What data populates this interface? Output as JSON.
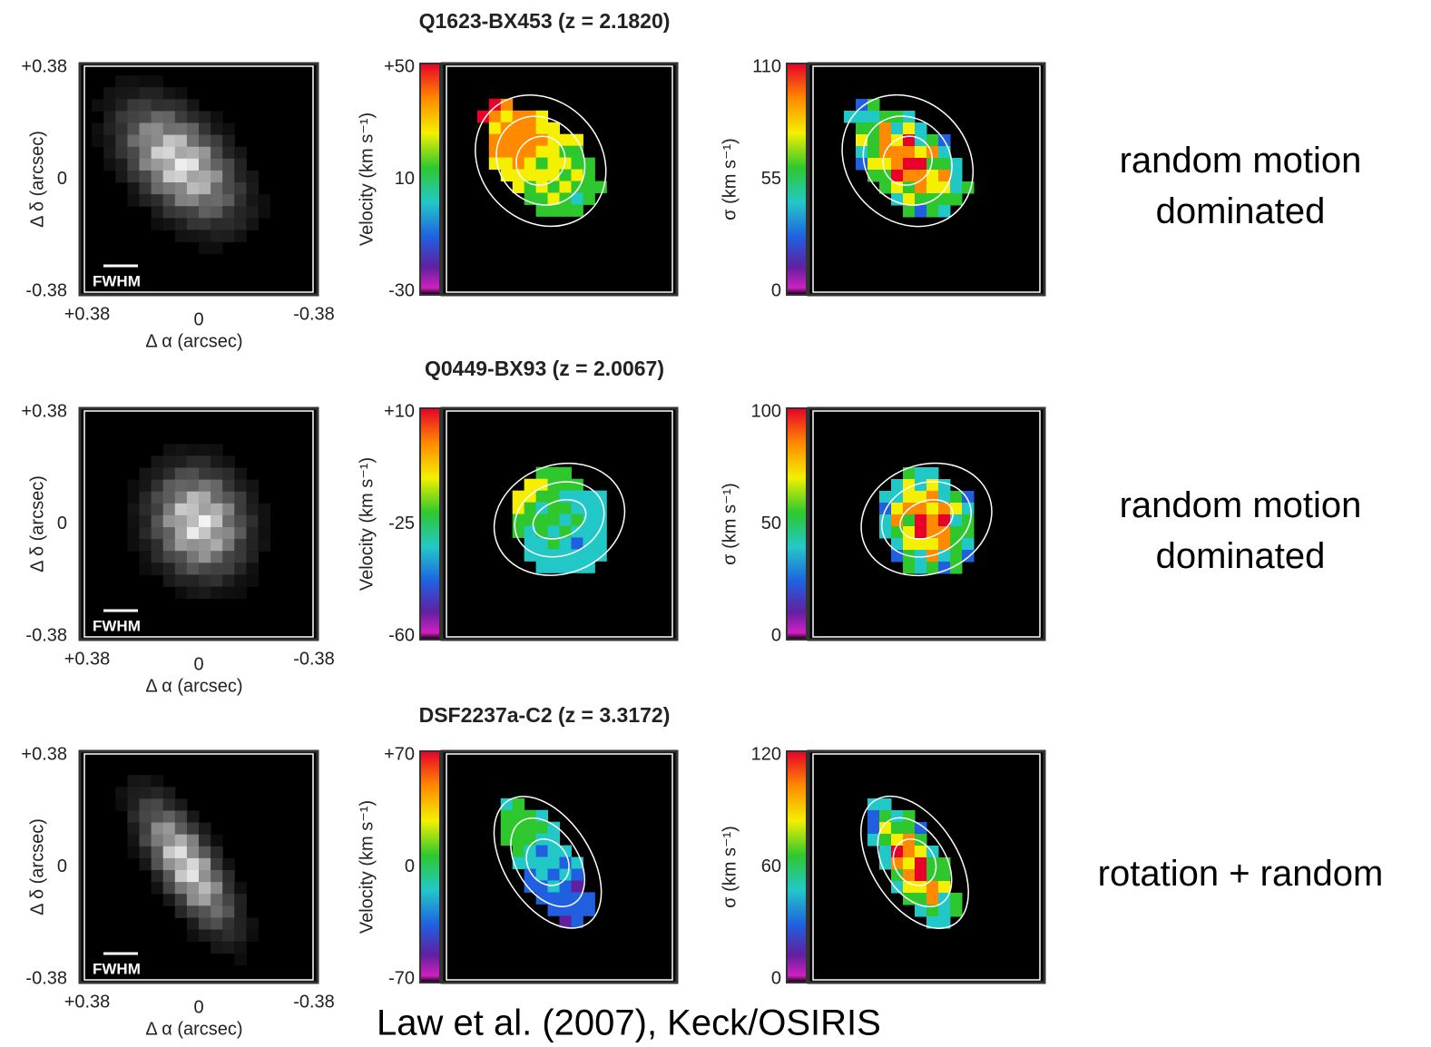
{
  "rows": [
    {
      "title": "Q1623-BX453 (z = 2.1820)",
      "flux": {
        "yticks": [
          "+0.38",
          "0",
          "-0.38"
        ],
        "xticks": [
          "+0.38",
          "0",
          "-0.38"
        ],
        "ylabel": "Δ δ (arcsec)",
        "xlabel": "Δ α (arcsec)",
        "scalebar": "FWHM"
      },
      "velocity": {
        "label": "Velocity (km s⁻¹)",
        "ticks": [
          "+50",
          "10",
          "-30"
        ]
      },
      "dispersion": {
        "label": "σ (km s⁻¹)",
        "ticks": [
          "110",
          "55",
          "0"
        ]
      },
      "note": [
        "random motion",
        "dominated"
      ]
    },
    {
      "title": "Q0449-BX93 (z = 2.0067)",
      "flux": {
        "yticks": [
          "+0.38",
          "0",
          "-0.38"
        ],
        "xticks": [
          "+0.38",
          "0",
          "-0.38"
        ],
        "ylabel": "Δ δ (arcsec)",
        "xlabel": "Δ α (arcsec)",
        "scalebar": "FWHM"
      },
      "velocity": {
        "label": "Velocity (km s⁻¹)",
        "ticks": [
          "+10",
          "-25",
          "-60"
        ]
      },
      "dispersion": {
        "label": "σ (km s⁻¹)",
        "ticks": [
          "100",
          "50",
          "0"
        ]
      },
      "note": [
        "random motion",
        "dominated"
      ]
    },
    {
      "title": "DSF2237a-C2 (z = 3.3172)",
      "flux": {
        "yticks": [
          "+0.38",
          "0",
          "-0.38"
        ],
        "xticks": [
          "+0.38",
          "0",
          "-0.38"
        ],
        "ylabel": "Δ δ (arcsec)",
        "xlabel": "Δ α (arcsec)",
        "scalebar": "FWHM"
      },
      "velocity": {
        "label": "Velocity (km s⁻¹)",
        "ticks": [
          "+70",
          "0",
          "-70"
        ]
      },
      "dispersion": {
        "label": "σ (km s⁻¹)",
        "ticks": [
          "120",
          "60",
          "0"
        ]
      },
      "note": [
        "rotation + random"
      ]
    }
  ],
  "credit": "Law et al. (2007), Keck/OSIRIS"
}
